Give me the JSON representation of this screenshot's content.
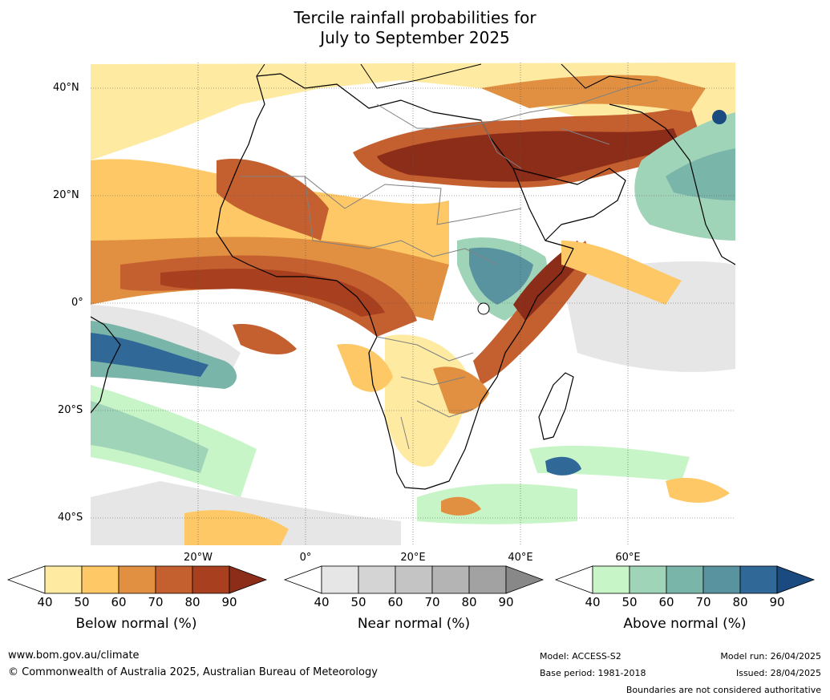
{
  "title_line1": "Tercile rainfall probabilities for",
  "title_line2": "July to September 2025",
  "lat_labels": [
    "40°N",
    "20°N",
    "0°",
    "20°S",
    "40°S"
  ],
  "lon_labels": [
    "20°W",
    "0°",
    "20°E",
    "40°E",
    "60°E"
  ],
  "colorbars": [
    {
      "label": "Below normal (%)",
      "ticks": [
        "40",
        "50",
        "60",
        "70",
        "80",
        "90"
      ],
      "colors": [
        "#ffffff",
        "#feeaa0",
        "#fdc865",
        "#e09040",
        "#c45f2f",
        "#a8401f",
        "#8c2d1a"
      ]
    },
    {
      "label": "Near normal (%)",
      "ticks": [
        "40",
        "50",
        "60",
        "70",
        "80",
        "90"
      ],
      "colors": [
        "#ffffff",
        "#e6e6e6",
        "#d4d4d4",
        "#c4c4c4",
        "#b4b4b4",
        "#a2a2a2",
        "#888888"
      ]
    },
    {
      "label": "Above normal (%)",
      "ticks": [
        "40",
        "50",
        "60",
        "70",
        "80",
        "90"
      ],
      "colors": [
        "#ffffff",
        "#c8f5c8",
        "#a0d4b8",
        "#7ab5aa",
        "#5a93a0",
        "#306898",
        "#1a4a80"
      ]
    }
  ],
  "footer": {
    "website": "www.bom.gov.au/climate",
    "copyright": "© Commonwealth of Australia 2025, Australian Bureau of Meteorology",
    "model": "Model: ACCESS-S2",
    "base_period": "Base period: 1981-2018",
    "model_run": "Model run: 26/04/2025",
    "issued": "Issued: 28/04/2025",
    "disclaimer": "Boundaries are not considered authoritative"
  }
}
